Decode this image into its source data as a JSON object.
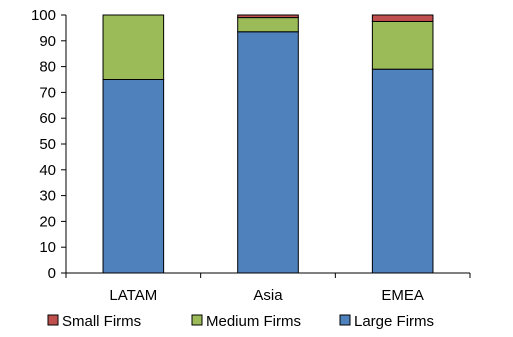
{
  "chart_data": {
    "type": "bar",
    "stacked": true,
    "categories": [
      "LATAM",
      "Asia",
      "EMEA"
    ],
    "series": [
      {
        "name": "Large Firms",
        "color": "#4F81BD",
        "values": [
          75,
          93.5,
          79
        ]
      },
      {
        "name": "Medium Firms",
        "color": "#9BBB59",
        "values": [
          25,
          5.5,
          18.5
        ]
      },
      {
        "name": "Small Firms",
        "color": "#C0504D",
        "values": [
          0,
          1,
          2.5
        ]
      }
    ],
    "legend_order": [
      "Small Firms",
      "Medium Firms",
      "Large Firms"
    ],
    "yticks": [
      "0",
      "10",
      "20",
      "30",
      "40",
      "50",
      "60",
      "70",
      "80",
      "90",
      "100"
    ],
    "ylim": [
      0,
      100
    ],
    "grid": false,
    "legend_position": "bottom",
    "title": "",
    "xlabel": "",
    "ylabel": ""
  }
}
